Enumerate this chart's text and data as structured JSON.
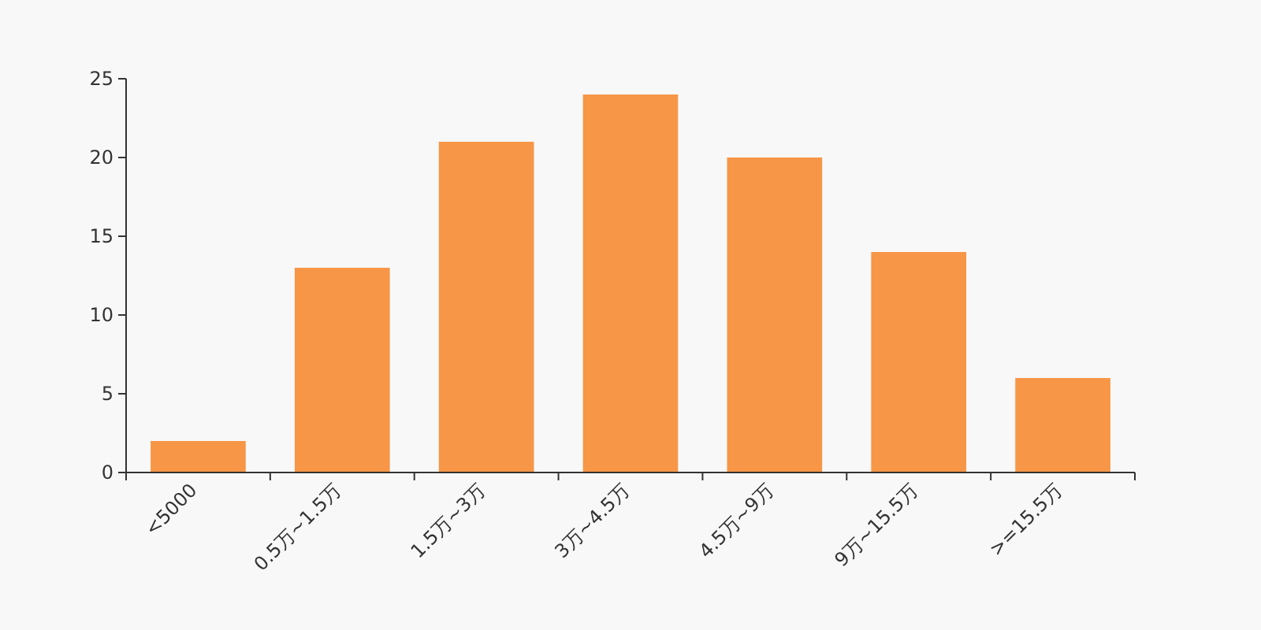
{
  "chart_data": {
    "type": "bar",
    "categories": [
      "<5000",
      "0.5万~1.5万",
      "1.5万~3万",
      "3万~4.5万",
      "4.5万~9万",
      "9万~15.5万",
      ">=15.5万"
    ],
    "values": [
      2,
      13,
      21,
      24,
      20,
      14,
      6
    ],
    "color": "#f79646",
    "ylim": [
      0,
      25
    ],
    "yticks": [
      0,
      5,
      10,
      15,
      20,
      25
    ],
    "grid": false
  }
}
